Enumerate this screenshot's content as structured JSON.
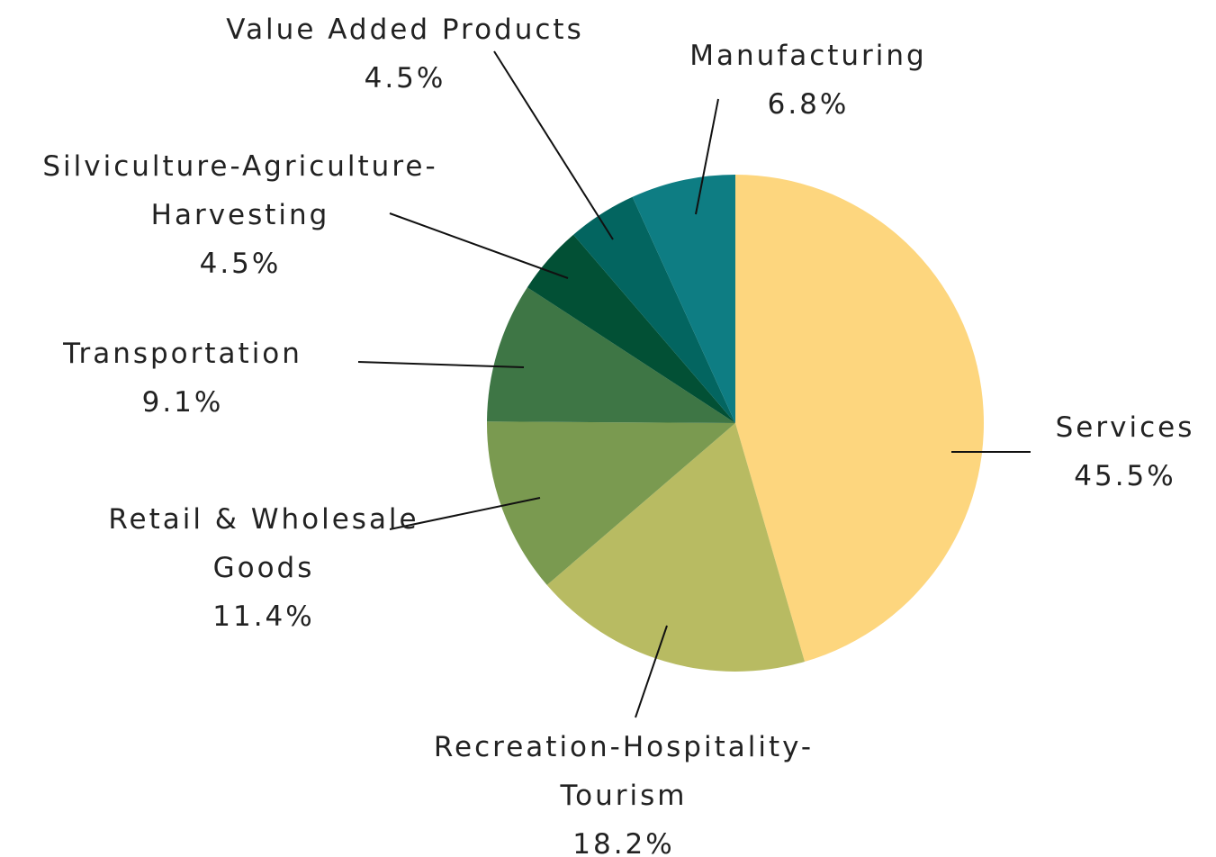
{
  "chart_data": {
    "type": "pie",
    "categories": [
      "Services",
      "Recreation-Hospitality-Tourism",
      "Retail & Wholesale Goods",
      "Transportation",
      "Silviculture-Agriculture-Harvesting",
      "Value Added Products",
      "Manufacturing"
    ],
    "values": [
      45.5,
      18.2,
      11.4,
      9.1,
      4.5,
      4.5,
      6.8
    ],
    "value_labels": [
      "45.5%",
      "18.2%",
      "11.4%",
      "9.1%",
      "4.5%",
      "4.5%",
      "6.8%"
    ],
    "colors": [
      "#fdd67e",
      "#b8bb62",
      "#7a9a50",
      "#3e7645",
      "#025035",
      "#036560",
      "#0e7d83"
    ]
  }
}
